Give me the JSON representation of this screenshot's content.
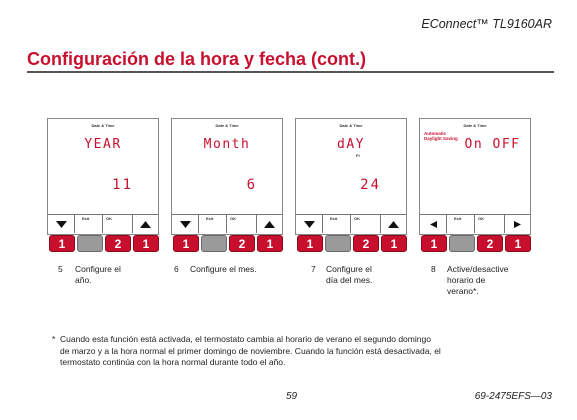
{
  "header": {
    "model": "EConnect™ TL9160AR"
  },
  "page": {
    "title": "Configuración de la hora y fecha (cont.)",
    "page_number": "59",
    "doc_number": "69-2475EFS—03"
  },
  "screens": [
    {
      "label": "Date & Time",
      "mode": "YEAR",
      "value": "11",
      "soft_exit": "Exit",
      "soft_ok": "OK"
    },
    {
      "label": "Date & Time",
      "mode": "Month",
      "value": "6",
      "soft_exit": "Exit",
      "soft_ok": "OK"
    },
    {
      "label": "Date & Time",
      "mode": "dAY",
      "sub": "Fr",
      "value": "24",
      "soft_exit": "Exit",
      "soft_ok": "OK"
    },
    {
      "label": "Date & Time",
      "aux_line1": "Automatic",
      "aux_line2": "Daylight Saving",
      "mode": "On OFF",
      "soft_exit": "Exit",
      "soft_ok": "OK"
    }
  ],
  "buttons": {
    "one": "1",
    "two": "2"
  },
  "steps": [
    {
      "num": "5",
      "line1": "Configure el",
      "line2": "año."
    },
    {
      "num": "6",
      "line1": "Configure el mes."
    },
    {
      "num": "7",
      "line1": "Configure el",
      "line2": "día del mes."
    },
    {
      "num": "8",
      "line1": "Active/desactive",
      "line2": "horario de",
      "line3": "verano*."
    }
  ],
  "footnote": {
    "marker": "*",
    "line1": "Cuando esta función está activada, el termostato cambia al horario de verano el segundo domingo",
    "line2": "de marzo y a la hora normal el primer domingo de noviembre. Cuando la función está desactivada, el",
    "line3": "termostato continúa con la hora normal durante todo el año."
  },
  "colors": {
    "accent": "#c8102e",
    "gray_button": "#9a9a9a"
  }
}
